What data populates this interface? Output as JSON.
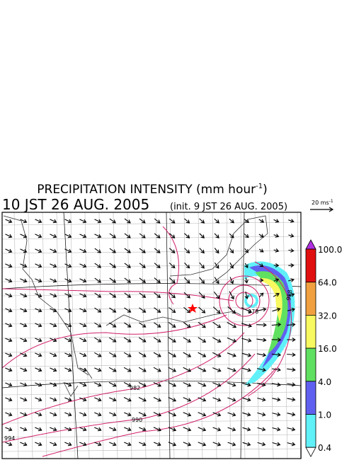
{
  "header": {
    "title": "PRECIPITATION INTENSITY (mm hour",
    "title_sup": "-1",
    "title_end": ")",
    "time": "10 JST 26 AUG. 2005",
    "init": "(init. 9 JST 26 AUG. 2005)"
  },
  "vector_scale": {
    "label": "20 ms",
    "label_sup": "-1"
  },
  "colorbar": {
    "levels": [
      {
        "value": 100,
        "label": "100.0"
      },
      {
        "value": 64,
        "label": "64.0"
      },
      {
        "value": 32,
        "label": "32.0"
      },
      {
        "value": 16,
        "label": "16.0"
      },
      {
        "value": 4,
        "label": "4.0"
      },
      {
        "value": 1,
        "label": "1.0"
      },
      {
        "value": 0.4,
        "label": "0.4"
      }
    ],
    "colors": [
      "#b030e0",
      "#e01010",
      "#f0a040",
      "#f8f860",
      "#60e060",
      "#6060f0",
      "#60f0f8",
      "#ffffff"
    ]
  },
  "contour_labels": [
    "982",
    "990",
    "994",
    "978",
    "988"
  ]
}
